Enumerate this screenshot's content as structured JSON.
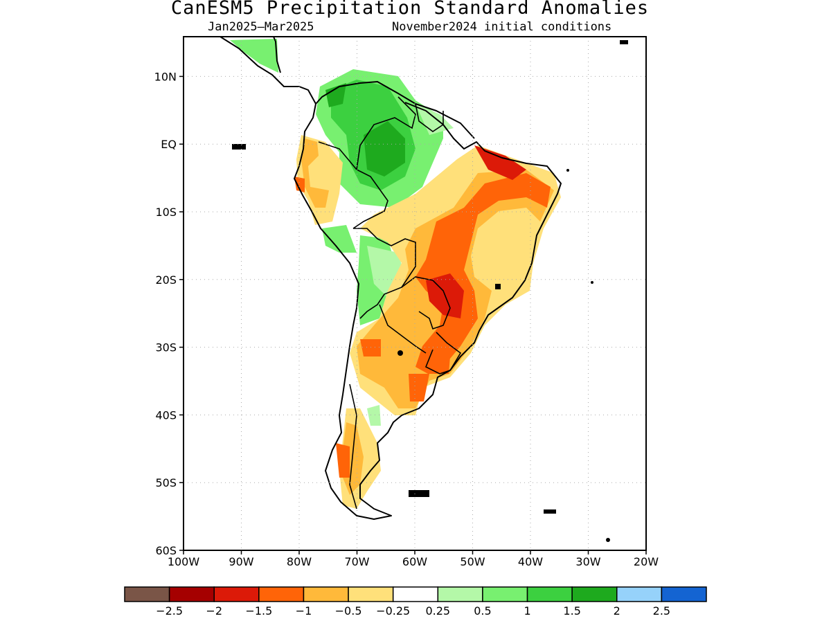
{
  "title": "CanESM5 Precipitation Standard Anomalies",
  "subtitle_period": "Jan2025–Mar2025",
  "subtitle_init": "November2024 initial conditions",
  "map": {
    "lon_range": [
      -100,
      -20
    ],
    "lat_range": [
      -60,
      15
    ],
    "lat_ticks": [
      {
        "value": 10,
        "label": "10N"
      },
      {
        "value": 0,
        "label": "EQ"
      },
      {
        "value": -10,
        "label": "10S"
      },
      {
        "value": -20,
        "label": "20S"
      },
      {
        "value": -30,
        "label": "30S"
      },
      {
        "value": -40,
        "label": "40S"
      },
      {
        "value": -50,
        "label": "50S"
      },
      {
        "value": -60,
        "label": "60S"
      }
    ],
    "lon_ticks": [
      {
        "value": -100,
        "label": "100W"
      },
      {
        "value": -90,
        "label": "90W"
      },
      {
        "value": -80,
        "label": "80W"
      },
      {
        "value": -70,
        "label": "70W"
      },
      {
        "value": -60,
        "label": "60W"
      },
      {
        "value": -50,
        "label": "50W"
      },
      {
        "value": -40,
        "label": "40W"
      },
      {
        "value": -30,
        "label": "30W"
      },
      {
        "value": -20,
        "label": "20W"
      }
    ],
    "grid": "dotted"
  },
  "colorbar": {
    "colors": [
      "#7a5547",
      "#a50000",
      "#dc1a08",
      "#ff6408",
      "#ffb93a",
      "#ffe07a",
      "#ffffff",
      "#b4f8a8",
      "#78f070",
      "#3cd040",
      "#1eaa1e",
      "#96d2fa",
      "#1464d2"
    ],
    "labels": [
      "−2.5",
      "−2",
      "−1.5",
      "−1",
      "−0.5",
      "−0.25",
      "0.25",
      "0.5",
      "1",
      "1.5",
      "2",
      "2.5"
    ]
  },
  "colors": {
    "dry_strong": "#dc1a08",
    "dry": "#ff6408",
    "dry_moderate": "#ffb93a",
    "dry_weak": "#ffe07a",
    "wet_weak": "#b4f8a8",
    "wet": "#78f070",
    "wet_moderate": "#3cd040",
    "wet_strong": "#1eaa1e"
  }
}
